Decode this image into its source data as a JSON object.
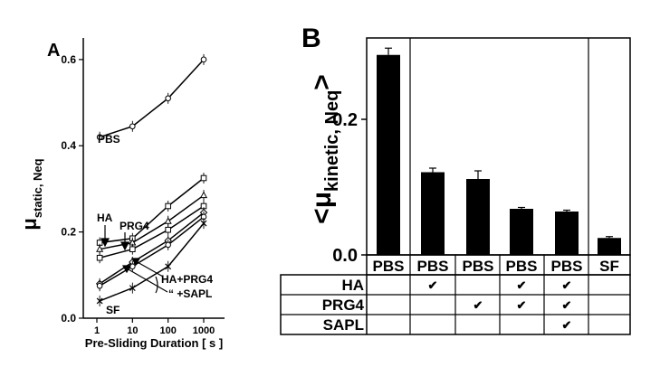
{
  "chart_data": [
    {
      "panel": "A",
      "type": "line",
      "xscale": "log",
      "xlabel": "Pre-Sliding Duration [ s ]",
      "ylabel_main": "μ",
      "ylabel_sub": "static, Neq",
      "xticks": [
        1,
        10,
        100,
        1000
      ],
      "xtick_labels": [
        "1",
        "10",
        "100",
        "1000"
      ],
      "yticks": [
        0.0,
        0.2,
        0.4,
        0.6
      ],
      "ytick_labels": [
        "0.0",
        "0.2",
        "0.4",
        "0.6"
      ],
      "ylim": [
        0,
        0.65
      ],
      "grid": false,
      "x": [
        1.2,
        10,
        100,
        1000
      ],
      "series": [
        {
          "name": "PBS",
          "values": [
            0.42,
            0.445,
            0.51,
            0.6
          ],
          "marker": "circle"
        },
        {
          "name": "HA",
          "values": [
            0.175,
            0.185,
            0.26,
            0.325
          ],
          "marker": "square"
        },
        {
          "name": "PRG4",
          "values": [
            0.16,
            0.175,
            0.225,
            0.285
          ],
          "marker": "triangle"
        },
        {
          "name": "",
          "values": [
            0.14,
            0.16,
            0.205,
            0.26
          ],
          "marker": "square"
        },
        {
          "name": "HA+PRG4",
          "values": [
            0.08,
            0.13,
            0.18,
            0.245
          ],
          "marker": "diamond"
        },
        {
          "name": "“ +SAPL",
          "values": [
            0.075,
            0.12,
            0.17,
            0.235
          ],
          "marker": "circle"
        },
        {
          "name": "SF",
          "values": [
            0.04,
            0.07,
            0.12,
            0.22
          ],
          "marker": "x"
        }
      ],
      "annotations": [
        "PBS",
        "HA",
        "PRG4",
        "HA+PRG4",
        "“ +SAPL",
        "SF"
      ]
    },
    {
      "panel": "B",
      "type": "bar",
      "ylabel_main": "<μ",
      "ylabel_sub": "kinetic, Neq",
      "ylabel_close": ">",
      "yticks": [
        0.0,
        0.2
      ],
      "ytick_labels": [
        "0.0",
        "0.2"
      ],
      "ylim": [
        0,
        0.32
      ],
      "categories": [
        "PBS",
        "PBS",
        "PBS",
        "PBS",
        "PBS",
        "SF"
      ],
      "values": [
        0.295,
        0.122,
        0.112,
        0.068,
        0.064,
        0.025
      ],
      "errors": [
        0.01,
        0.006,
        0.012,
        0.002,
        0.002,
        0.002
      ],
      "color": "#000000",
      "table": {
        "rows": [
          {
            "label": "HA",
            "checks": [
              false,
              true,
              false,
              true,
              true,
              false
            ]
          },
          {
            "label": "PRG4",
            "checks": [
              false,
              false,
              true,
              true,
              true,
              false
            ]
          },
          {
            "label": "SAPL",
            "checks": [
              false,
              false,
              false,
              false,
              true,
              false
            ]
          }
        ],
        "check_symbol": "✔"
      }
    }
  ],
  "panel_labels": {
    "a": "A",
    "b": "B"
  }
}
